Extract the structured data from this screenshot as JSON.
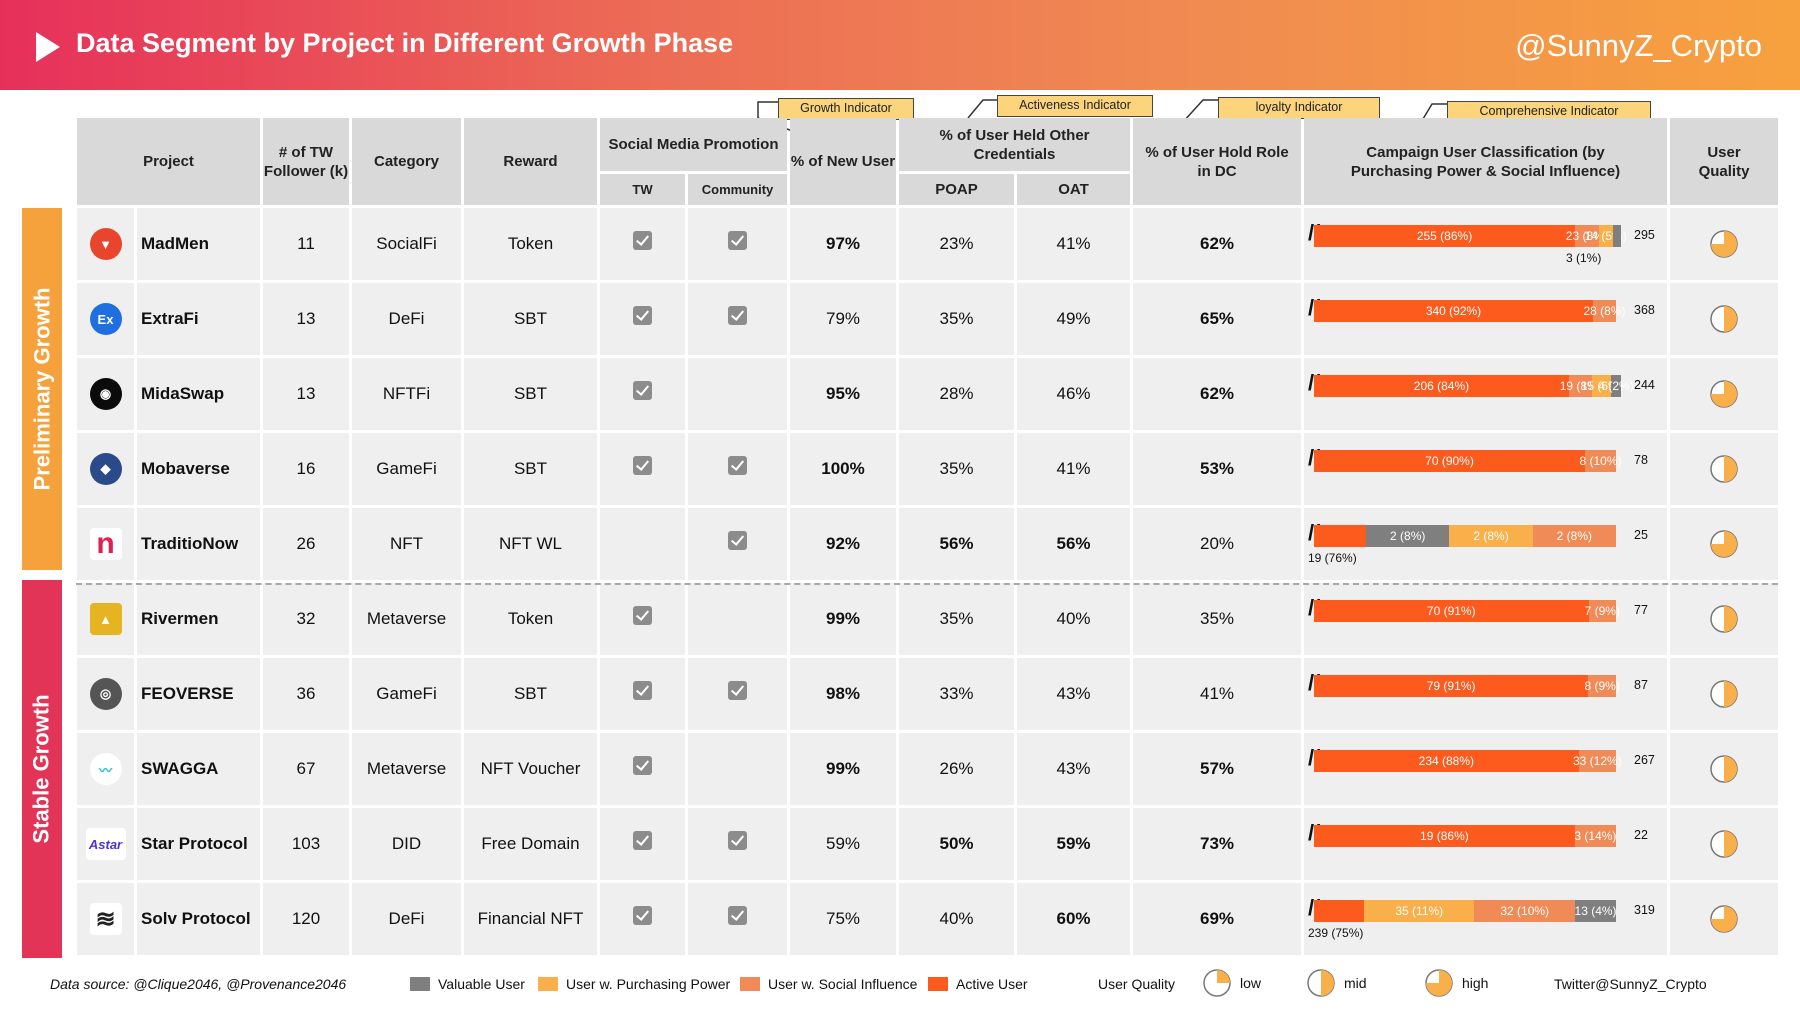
{
  "header": {
    "title": "Data Segment by Project in Different Growth Phase",
    "handle": "@SunnyZ_Crypto"
  },
  "indicators": {
    "growth": "Growth Indicator",
    "activeness": "Activeness Indicator",
    "loyalty": "loyalty Indicator",
    "comprehensive": "Comprehensive  Indicator"
  },
  "columns": {
    "project": "Project",
    "followers": "# of TW Follower (k)",
    "category": "Category",
    "reward": "Reward",
    "social": "Social Media Promotion",
    "tw": "TW",
    "community": "Community",
    "new_user": "% of New User",
    "held_other": "% of User Held Other Credentials",
    "poap": "POAP",
    "oat": "OAT",
    "dc_role": "% of User Hold Role in DC",
    "campaign": "Campaign User Classification (by Purchasing Power & Social Influence)",
    "quality": "User Quality"
  },
  "phases": {
    "preliminary": "Preliminary Growth",
    "stable": "Stable Growth"
  },
  "colors": {
    "active": "#fd5a1e",
    "social": "#f08a57",
    "purchasing": "#f9b04a",
    "valuable": "#7f7f7f",
    "phase_preliminary": "#f6a23c",
    "phase_stable": "#e23457"
  },
  "chart_data": {
    "type": "table",
    "rows": [
      {
        "project": "MadMen",
        "logo": "madmen-logo",
        "followers": "11",
        "category": "SocialFi",
        "reward": "Token",
        "tw": true,
        "community": true,
        "new_user": "97%",
        "poap": "23%",
        "oat": "41%",
        "dc_role": "62%",
        "bold": {
          "new_user": true,
          "poap": false,
          "oat": false,
          "dc_role": true
        },
        "segments": [
          {
            "label": "255 (86%)",
            "value": 255,
            "type": "active"
          },
          {
            "label": "23 (8%)",
            "value": 23,
            "type": "social"
          },
          {
            "label": "14 (5%)",
            "value": 14,
            "type": "purchasing"
          },
          {
            "label": "",
            "value": 3,
            "type": "valuable"
          }
        ],
        "note": "3 (1%)",
        "total": "295",
        "quality": "high",
        "quality_fraction": 0.75
      },
      {
        "project": "ExtraFi",
        "logo": "extrafi-logo",
        "followers": "13",
        "category": "DeFi",
        "reward": "SBT",
        "tw": true,
        "community": true,
        "new_user": "79%",
        "poap": "35%",
        "oat": "49%",
        "dc_role": "65%",
        "bold": {
          "new_user": false,
          "poap": false,
          "oat": false,
          "dc_role": true
        },
        "segments": [
          {
            "label": "340 (92%)",
            "value": 340,
            "type": "active"
          },
          {
            "label": "28 (8%)",
            "value": 28,
            "type": "social"
          }
        ],
        "note": "",
        "total": "368",
        "quality": "mid",
        "quality_fraction": 0.5
      },
      {
        "project": "MidaSwap",
        "logo": "midaswap-logo",
        "followers": "13",
        "category": "NFTFi",
        "reward": "SBT",
        "tw": true,
        "community": false,
        "new_user": "95%",
        "poap": "28%",
        "oat": "46%",
        "dc_role": "62%",
        "bold": {
          "new_user": true,
          "poap": false,
          "oat": false,
          "dc_role": true
        },
        "segments": [
          {
            "label": "206 (84%)",
            "value": 206,
            "type": "active"
          },
          {
            "label": "19 (8%)",
            "value": 19,
            "type": "social"
          },
          {
            "label": "15 (6%)",
            "value": 15,
            "type": "purchasing"
          },
          {
            "label": "4 (2%)",
            "value": 4,
            "type": "valuable"
          }
        ],
        "note": "",
        "total": "244",
        "quality": "high",
        "quality_fraction": 0.75
      },
      {
        "project": "Mobaverse",
        "logo": "mobaverse-logo",
        "followers": "16",
        "category": "GameFi",
        "reward": "SBT",
        "tw": true,
        "community": true,
        "new_user": "100%",
        "poap": "35%",
        "oat": "41%",
        "dc_role": "53%",
        "bold": {
          "new_user": true,
          "poap": false,
          "oat": false,
          "dc_role": true
        },
        "segments": [
          {
            "label": "70 (90%)",
            "value": 70,
            "type": "active"
          },
          {
            "label": "8 (10%)",
            "value": 8,
            "type": "social"
          }
        ],
        "note": "",
        "total": "78",
        "quality": "mid",
        "quality_fraction": 0.5
      },
      {
        "project": "TraditioNow",
        "logo": "traditionow-logo",
        "followers": "26",
        "category": "NFT",
        "reward": "NFT WL",
        "tw": false,
        "community": true,
        "new_user": "92%",
        "poap": "56%",
        "oat": "56%",
        "dc_role": "20%",
        "bold": {
          "new_user": true,
          "poap": true,
          "oat": true,
          "dc_role": false
        },
        "segments": [
          {
            "label": "",
            "value": 19,
            "type": "active"
          },
          {
            "label": "2 (8%)",
            "value": 2,
            "type": "valuable"
          },
          {
            "label": "2 (8%)",
            "value": 2,
            "type": "purchasing"
          },
          {
            "label": "2 (8%)",
            "value": 2,
            "type": "social"
          }
        ],
        "note": "19 (76%)",
        "total": "25",
        "quality": "high",
        "quality_fraction": 0.75
      },
      {
        "project": "Rivermen",
        "logo": "rivermen-logo",
        "followers": "32",
        "category": "Metaverse",
        "reward": "Token",
        "tw": true,
        "community": false,
        "new_user": "99%",
        "poap": "35%",
        "oat": "40%",
        "dc_role": "35%",
        "bold": {
          "new_user": true,
          "poap": false,
          "oat": false,
          "dc_role": false
        },
        "segments": [
          {
            "label": "70 (91%)",
            "value": 70,
            "type": "active"
          },
          {
            "label": "7 (9%)",
            "value": 7,
            "type": "social"
          }
        ],
        "note": "",
        "total": "77",
        "quality": "mid",
        "quality_fraction": 0.5
      },
      {
        "project": "FEOVERSE",
        "logo": "feoverse-logo",
        "followers": "36",
        "category": "GameFi",
        "reward": "SBT",
        "tw": true,
        "community": true,
        "new_user": "98%",
        "poap": "33%",
        "oat": "43%",
        "dc_role": "41%",
        "bold": {
          "new_user": true,
          "poap": false,
          "oat": false,
          "dc_role": false
        },
        "segments": [
          {
            "label": "79 (91%)",
            "value": 79,
            "type": "active"
          },
          {
            "label": "8 (9%)",
            "value": 8,
            "type": "social"
          }
        ],
        "note": "",
        "total": "87",
        "quality": "mid",
        "quality_fraction": 0.5
      },
      {
        "project": "SWAGGA",
        "logo": "swagga-logo",
        "followers": "67",
        "category": "Metaverse",
        "reward": "NFT Voucher",
        "tw": true,
        "community": false,
        "new_user": "99%",
        "poap": "26%",
        "oat": "43%",
        "dc_role": "57%",
        "bold": {
          "new_user": true,
          "poap": false,
          "oat": false,
          "dc_role": true
        },
        "segments": [
          {
            "label": "234 (88%)",
            "value": 234,
            "type": "active"
          },
          {
            "label": "33 (12%)",
            "value": 33,
            "type": "social"
          }
        ],
        "note": "",
        "total": "267",
        "quality": "mid",
        "quality_fraction": 0.5
      },
      {
        "project": "Star Protocol",
        "logo": "star-protocol-logo",
        "followers": "103",
        "category": "DID",
        "reward": "Free Domain",
        "tw": true,
        "community": true,
        "new_user": "59%",
        "poap": "50%",
        "oat": "59%",
        "dc_role": "73%",
        "bold": {
          "new_user": false,
          "poap": true,
          "oat": true,
          "dc_role": true
        },
        "segments": [
          {
            "label": "19 (86%)",
            "value": 19,
            "type": "active"
          },
          {
            "label": "3 (14%)",
            "value": 3,
            "type": "social"
          }
        ],
        "note": "",
        "total": "22",
        "quality": "mid",
        "quality_fraction": 0.5
      },
      {
        "project": "Solv Protocol",
        "logo": "solv-protocol-logo",
        "followers": "120",
        "category": "DeFi",
        "reward": "Financial NFT",
        "tw": true,
        "community": true,
        "new_user": "75%",
        "poap": "40%",
        "oat": "60%",
        "dc_role": "69%",
        "bold": {
          "new_user": false,
          "poap": false,
          "oat": true,
          "dc_role": true
        },
        "segments": [
          {
            "label": "",
            "value": 239,
            "type": "active"
          },
          {
            "label": "35 (11%)",
            "value": 35,
            "type": "purchasing"
          },
          {
            "label": "32 (10%)",
            "value": 32,
            "type": "social"
          },
          {
            "label": "13 (4%)",
            "value": 13,
            "type": "valuable"
          }
        ],
        "note": "239 (75%)",
        "total": "319",
        "quality": "high",
        "quality_fraction": 0.75
      }
    ]
  },
  "legend": {
    "source": "Data source: @Clique2046, @Provenance2046",
    "valuable": "Valuable User",
    "purchasing": "User w. Purchasing Power",
    "social": "User w. Social Influence",
    "active": "Active User",
    "quality_title": "User Quality",
    "low": "low",
    "mid": "mid",
    "high": "high",
    "twitter": "Twitter@SunnyZ_Crypto"
  }
}
